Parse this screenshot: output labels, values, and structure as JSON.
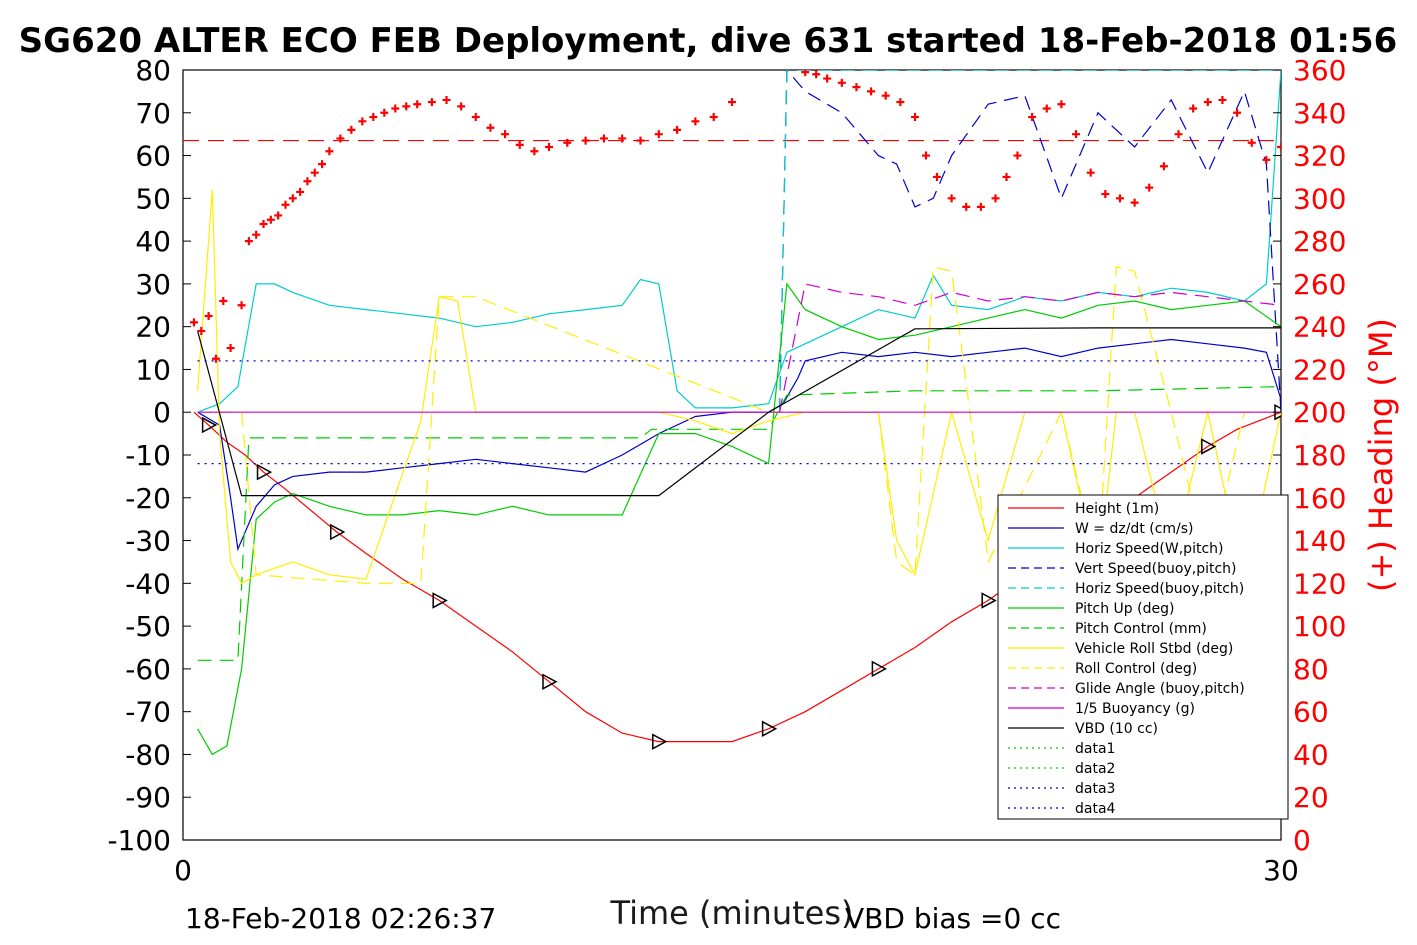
{
  "chart_data": {
    "type": "line",
    "title": "SG620 ALTER ECO FEB Deployment, dive 631 started 18-Feb-2018 01:56",
    "xlabel": "Time (minutes)",
    "ylabel_right": "(+) Heading (°M)",
    "xlim": [
      0,
      30
    ],
    "ylim": [
      -100,
      80
    ],
    "ylim_right": [
      0,
      360
    ],
    "x_ticks": [
      "0",
      "30"
    ],
    "y_ticks": [
      "80",
      "70",
      "60",
      "50",
      "40",
      "30",
      "20",
      "10",
      "0",
      "-10",
      "-20",
      "-30",
      "-40",
      "-50",
      "-60",
      "-70",
      "-80",
      "-90",
      "-100"
    ],
    "y_ticks_right": [
      "360",
      "340",
      "320",
      "300",
      "280",
      "260",
      "240",
      "220",
      "200",
      "180",
      "160",
      "140",
      "120",
      "100",
      "80",
      "60",
      "40",
      "20",
      "0"
    ],
    "footer_left": "18-Feb-2018 02:26:37",
    "footer_right": "VBD bias =0 cc",
    "legend_position": "lower-right",
    "series": [
      {
        "name": "Height (1m)",
        "color": "#ff0000",
        "style": "solid",
        "x": [
          0.3,
          0.7,
          1.2,
          1.7,
          2.2,
          2.8,
          3.5,
          4.2,
          5.0,
          6.0,
          7.0,
          8.0,
          9.0,
          10.0,
          11.0,
          12.0,
          13.0,
          14.0,
          15.0,
          16.0,
          17.0,
          18.0,
          19.0,
          20.0,
          21.0,
          22.0,
          23.0,
          24.0,
          25.0,
          26.0,
          27.0,
          28.0,
          28.8,
          29.4,
          30.0
        ],
        "y": [
          0,
          -3,
          -7,
          -10,
          -14,
          -18,
          -23,
          -28,
          -33,
          -39,
          -44,
          -50,
          -56,
          -63,
          -70,
          -75,
          -77,
          -77,
          -77,
          -74,
          -70,
          -65,
          -60,
          -55,
          -49,
          -44,
          -38,
          -32,
          -26,
          -20,
          -14,
          -8,
          -4,
          -2,
          0
        ]
      },
      {
        "name": "W = dz/dt (cm/s)",
        "color": "#0000cc",
        "style": "solid",
        "x": [
          0.4,
          1.0,
          1.3,
          1.5,
          2.0,
          2.5,
          3.0,
          4.0,
          5.0,
          6.0,
          7.0,
          8.0,
          9.0,
          10.0,
          11.0,
          12.0,
          13.0,
          14.0,
          15.0,
          16.0,
          16.4,
          16.8,
          17.0,
          18.0,
          19.0,
          20.0,
          21.0,
          22.0,
          23.0,
          24.0,
          25.0,
          26.0,
          27.0,
          28.0,
          29.0,
          29.6,
          30.0
        ],
        "y": [
          0,
          -3,
          -20,
          -32,
          -22,
          -17,
          -15,
          -14,
          -14,
          -13,
          -12,
          -11,
          -12,
          -13,
          -14,
          -10,
          -5,
          -1,
          0,
          0,
          2,
          8,
          12,
          14,
          13,
          14,
          13,
          14,
          15,
          13,
          15,
          16,
          17,
          16,
          15,
          14,
          3
        ]
      },
      {
        "name": "Horiz Speed(W,pitch)",
        "color": "#00cccc",
        "style": "solid",
        "x": [
          0.4,
          1.0,
          1.5,
          2.0,
          2.5,
          3.0,
          4.0,
          5.0,
          6.0,
          7.0,
          8.0,
          9.0,
          10.0,
          11.0,
          12.0,
          12.5,
          13.0,
          13.5,
          14.0,
          15.0,
          16.0,
          16.5,
          17.0,
          18.0,
          19.0,
          20.0,
          20.5,
          21.0,
          22.0,
          23.0,
          24.0,
          25.0,
          26.0,
          27.0,
          28.0,
          29.0,
          29.6,
          30.0
        ],
        "y": [
          0,
          2,
          6,
          30,
          30,
          28,
          25,
          24,
          23,
          22,
          20,
          21,
          23,
          24,
          25,
          31,
          30,
          5,
          1,
          1,
          2,
          14,
          16,
          20,
          24,
          22,
          32,
          25,
          24,
          27,
          26,
          28,
          27,
          29,
          28,
          26,
          30,
          80
        ]
      },
      {
        "name": "Vert Speed(buoy,pitch)",
        "color": "#0000cc",
        "style": "dashed",
        "x": [
          16.3,
          16.5,
          17.0,
          18.0,
          19.0,
          19.5,
          20.0,
          20.5,
          21.0,
          22.0,
          23.0,
          24.0,
          25.0,
          26.0,
          27.0,
          28.0,
          29.0,
          29.6,
          30.0
        ],
        "y": [
          0,
          80,
          75,
          70,
          60,
          58,
          48,
          50,
          60,
          72,
          74,
          50,
          70,
          62,
          73,
          56,
          75,
          58,
          0
        ]
      },
      {
        "name": "Horiz Speed(buoy,pitch)",
        "color": "#00cccc",
        "style": "dashed",
        "x": [
          16.3,
          16.5,
          30.0
        ],
        "y": [
          0,
          80,
          80
        ]
      },
      {
        "name": "Pitch Up (deg)",
        "color": "#00cc00",
        "style": "solid",
        "x": [
          0.4,
          0.8,
          1.2,
          1.6,
          2.0,
          2.5,
          3.0,
          4.0,
          5.0,
          6.0,
          7.0,
          8.0,
          9.0,
          10.0,
          11.0,
          12.0,
          13.0,
          14.0,
          15.0,
          16.0,
          16.5,
          17.0,
          18.0,
          19.0,
          20.0,
          21.0,
          22.0,
          23.0,
          24.0,
          25.0,
          26.0,
          27.0,
          28.0,
          29.0,
          30.0
        ],
        "y": [
          -74,
          -80,
          -78,
          -60,
          -25,
          -21,
          -19,
          -22,
          -24,
          -24,
          -23,
          -24,
          -22,
          -24,
          -24,
          -24,
          -5,
          -5,
          -8,
          -12,
          30,
          24,
          20,
          17,
          18,
          20,
          22,
          24,
          22,
          25,
          26,
          24,
          25,
          26,
          20
        ]
      },
      {
        "name": "Pitch Control (mm)",
        "color": "#00cc00",
        "style": "dashed",
        "x": [
          0.4,
          1.5,
          1.8,
          2.0,
          5.0,
          10.0,
          12.5,
          12.8,
          16.0,
          16.5,
          20.0,
          25.0,
          30.0
        ],
        "y": [
          -58,
          -58,
          -6,
          -6,
          -6,
          -6,
          -6,
          -4,
          -4,
          4,
          5,
          5,
          6
        ]
      },
      {
        "name": "Vehicle Roll Stbd (deg)",
        "color": "#ffee00",
        "style": "solid",
        "x": [
          0.4,
          0.8,
          1.0,
          1.3,
          1.6,
          2.0,
          3.0,
          4.0,
          5.0,
          6.5,
          7.0,
          7.5,
          8.0,
          9.0,
          10.0,
          11.0,
          12.0,
          13.0,
          14.0,
          15.0,
          16.0,
          17.0,
          18.0,
          19.0,
          19.5,
          20.0,
          21.0,
          22.0,
          23.0,
          24.0,
          25.0,
          25.5,
          26.0,
          27.0,
          28.0,
          29.0,
          30.0
        ],
        "y": [
          5,
          52,
          -5,
          -35,
          -40,
          -38,
          -35,
          -38,
          -39,
          -2,
          27,
          26,
          0,
          0,
          0,
          0,
          0,
          0,
          -2,
          -5,
          -2,
          0,
          0,
          0,
          -30,
          -38,
          0,
          -30,
          0,
          0,
          -38,
          0,
          0,
          -35,
          0,
          -40,
          0
        ]
      },
      {
        "name": "Roll Control (deg)",
        "color": "#ffee00",
        "style": "dashed",
        "x": [
          0.4,
          1.6,
          2.0,
          5.0,
          6.5,
          7.0,
          8.0,
          16.0,
          19.0,
          19.5,
          20.0,
          20.5,
          21.0,
          21.5,
          22.0,
          24.0,
          25.0,
          25.5,
          26.0,
          27.0,
          28.0,
          29.0,
          30.0
        ],
        "y": [
          0,
          0,
          -38,
          -40,
          -40,
          27,
          27,
          0,
          0,
          -35,
          -38,
          34,
          33,
          0,
          -35,
          0,
          -36,
          34,
          33,
          0,
          -36,
          0,
          0
        ]
      },
      {
        "name": "Glide Angle (buoy,pitch)",
        "color": "#cc00cc",
        "style": "dashed",
        "x": [
          16.3,
          17.0,
          18.0,
          19.0,
          20.0,
          21.0,
          22.0,
          23.0,
          24.0,
          25.0,
          26.0,
          27.0,
          28.0,
          29.0,
          30.0
        ],
        "y": [
          0,
          30,
          28,
          27,
          25,
          28,
          26,
          27,
          26,
          28,
          27,
          28,
          27,
          26,
          25
        ]
      },
      {
        "name": "1/5 Buoyancy (g)",
        "color": "#cc00cc",
        "style": "solid",
        "x": [
          0.4,
          30.0
        ],
        "y": [
          0,
          0
        ]
      },
      {
        "name": "VBD (10 cc)",
        "color": "#000000",
        "style": "solid",
        "x": [
          0.4,
          1.6,
          5.0,
          10.0,
          13.0,
          16.0,
          20.0,
          25.0,
          30.0
        ],
        "y": [
          19,
          -19.5,
          -19.5,
          -19.5,
          -19.5,
          0,
          19.5,
          19.7,
          19.7
        ]
      },
      {
        "name": "data1",
        "color": "#00cc00",
        "style": "dotted",
        "x": [],
        "y": []
      },
      {
        "name": "data2",
        "color": "#00cc00",
        "style": "dotted",
        "x": [],
        "y": []
      },
      {
        "name": "data3",
        "color": "#0000cc",
        "style": "dotted",
        "x": [
          0.4,
          30.0
        ],
        "y": [
          12,
          12
        ]
      },
      {
        "name": "data4",
        "color": "#0000cc",
        "style": "dotted",
        "x": [
          0.4,
          30.0
        ],
        "y": [
          -12,
          -12
        ]
      }
    ],
    "reference_lines": [
      {
        "axis": "right",
        "value": 327,
        "color": "#ff0000",
        "style": "dashed"
      }
    ],
    "heading_points": {
      "axis": "right",
      "color": "#ff0000",
      "marker": "plus",
      "x": [
        0.3,
        0.5,
        0.7,
        0.9,
        1.1,
        1.3,
        1.6,
        1.8,
        2.0,
        2.2,
        2.4,
        2.6,
        2.8,
        3.0,
        3.2,
        3.4,
        3.6,
        3.8,
        4.0,
        4.3,
        4.6,
        4.9,
        5.2,
        5.5,
        5.8,
        6.1,
        6.4,
        6.8,
        7.2,
        7.6,
        8.0,
        8.4,
        8.8,
        9.2,
        9.6,
        10.0,
        10.5,
        11.0,
        11.5,
        12.0,
        12.5,
        13.0,
        13.5,
        14.0,
        14.5,
        15.0,
        17.0,
        17.3,
        17.6,
        18.0,
        18.4,
        18.8,
        19.2,
        19.6,
        20.0,
        20.3,
        20.6,
        21.0,
        21.4,
        21.8,
        22.2,
        22.5,
        22.8,
        23.2,
        23.6,
        24.0,
        24.4,
        24.8,
        25.2,
        25.6,
        26.0,
        26.4,
        26.8,
        27.2,
        27.6,
        28.0,
        28.4,
        28.8,
        29.2,
        29.6,
        30.0
      ],
      "y": [
        242,
        238,
        245,
        225,
        252,
        230,
        250,
        280,
        283,
        288,
        290,
        292,
        297,
        300,
        303,
        308,
        312,
        316,
        322,
        328,
        332,
        336,
        338,
        340,
        342,
        343,
        344,
        345,
        346,
        343,
        338,
        333,
        330,
        325,
        322,
        324,
        326,
        327,
        328,
        328,
        327,
        330,
        332,
        336,
        338,
        345,
        359,
        358,
        356,
        354,
        352,
        350,
        348,
        345,
        338,
        320,
        310,
        300,
        296,
        296,
        300,
        310,
        320,
        338,
        342,
        344,
        330,
        312,
        302,
        300,
        298,
        305,
        315,
        330,
        342,
        345,
        346,
        340,
        326,
        318,
        324
      ]
    }
  }
}
